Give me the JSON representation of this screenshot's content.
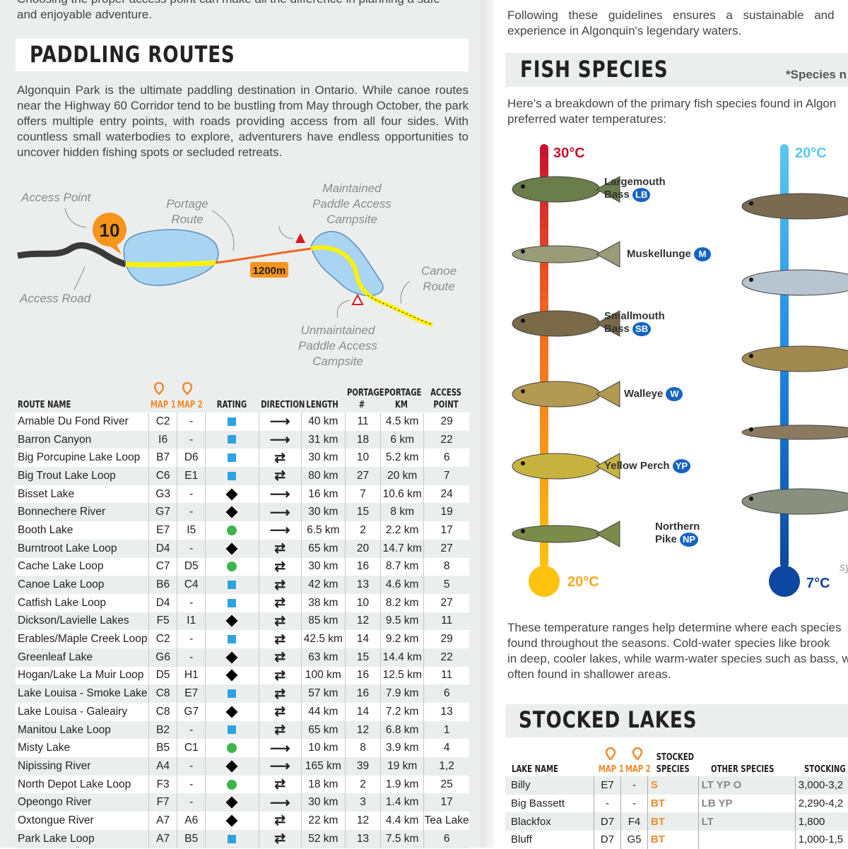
{
  "left": {
    "intro_lines": [
      "Choosing the proper access point can make all the difference in planning a safe",
      "and enjoyable adventure."
    ],
    "title": "PADDLING ROUTES",
    "paragraph": "Algonquin Park is the ultimate paddling destination in Ontario. While canoe routes near the Highway 60 Corridor tend to be bustling from May through October, the park offers multiple entry points, with roads providing access from all four sides. With countless small waterbodies to explore, adventurers have endless opportunities to uncover hidden fishing spots or secluded retreats.",
    "diagram": {
      "access_point": "Access Point",
      "access_number": "10",
      "portage_route": [
        "Portage",
        "Route"
      ],
      "maintained": [
        "Maintained",
        "Paddle Access",
        "Campsite"
      ],
      "portage_length": "1200m",
      "access_road": "Access Road",
      "canoe_route": [
        "Canoe",
        "Route"
      ],
      "unmaintained": [
        "Unmaintained",
        "Paddle Access",
        "Campsite"
      ]
    },
    "table": {
      "headers": {
        "route_name": "ROUTE NAME",
        "map1": "MAP 1",
        "map2": "MAP 2",
        "rating": "RATING",
        "direction": "DIRECTION",
        "length": "LENGTH",
        "portage_num": [
          "PORTAGE",
          "#"
        ],
        "portage_km": [
          "PORTAGE",
          "KM"
        ],
        "access_point": [
          "ACCESS",
          "POINT"
        ]
      },
      "rows": [
        [
          "Amable Du Fond River",
          "C2",
          "-",
          "square",
          "one-way",
          "40 km",
          "11",
          "4.5 km",
          "29"
        ],
        [
          "Barron Canyon",
          "I6",
          "-",
          "square",
          "one-way",
          "31 km",
          "18",
          "6 km",
          "22"
        ],
        [
          "Big Porcupine Lake Loop",
          "B7",
          "D6",
          "square",
          "loop",
          "30 km",
          "10",
          "5.2 km",
          "6"
        ],
        [
          "Big Trout Lake Loop",
          "C6",
          "E1",
          "square",
          "loop",
          "80 km",
          "27",
          "20 km",
          "7"
        ],
        [
          "Bisset Lake",
          "G3",
          "-",
          "diamond",
          "one-way",
          "16 km",
          "7",
          "10.6 km",
          "24"
        ],
        [
          "Bonnechere River",
          "G7",
          "-",
          "diamond",
          "one-way",
          "30 km",
          "15",
          "8 km",
          "19"
        ],
        [
          "Booth Lake",
          "E7",
          "I5",
          "circle",
          "one-way",
          "6.5 km",
          "2",
          "2.2 km",
          "17"
        ],
        [
          "Burntroot Lake Loop",
          "D4",
          "-",
          "diamond",
          "loop",
          "65 km",
          "20",
          "14.7 km",
          "27"
        ],
        [
          "Cache Lake Loop",
          "C7",
          "D5",
          "circle",
          "loop",
          "30 km",
          "16",
          "8.7 km",
          "8"
        ],
        [
          "Canoe Lake Loop",
          "B6",
          "C4",
          "square",
          "loop",
          "42 km",
          "13",
          "4.6 km",
          "5"
        ],
        [
          "Catfish Lake Loop",
          "D4",
          "-",
          "square",
          "loop",
          "38 km",
          "10",
          "8.2 km",
          "27"
        ],
        [
          "Dickson/Lavielle Lakes",
          "F5",
          "I1",
          "diamond",
          "loop",
          "85 km",
          "12",
          "9.5 km",
          "11"
        ],
        [
          "Erables/Maple Creek Loop",
          "C2",
          "-",
          "square",
          "loop",
          "42.5 km",
          "14",
          "9.2 km",
          "29"
        ],
        [
          "Greenleaf Lake",
          "G6",
          "-",
          "diamond",
          "loop",
          "63 km",
          "15",
          "14.4 km",
          "22"
        ],
        [
          "Hogan/Lake La Muir Loop",
          "D5",
          "H1",
          "diamond",
          "loop",
          "100 km",
          "16",
          "12.5 km",
          "11"
        ],
        [
          "Lake Louisa - Smoke Lake",
          "C8",
          "E7",
          "square",
          "loop",
          "57 km",
          "16",
          "7.9 km",
          "6"
        ],
        [
          "Lake Louisa - Galeairy",
          "C8",
          "G7",
          "diamond",
          "loop",
          "44 km",
          "14",
          "7.2 km",
          "13"
        ],
        [
          "Manitou Lake Loop",
          "B2",
          "-",
          "square",
          "loop",
          "65 km",
          "12",
          "6.8 km",
          "1"
        ],
        [
          "Misty Lake",
          "B5",
          "C1",
          "circle",
          "one-way",
          "10 km",
          "8",
          "3.9 km",
          "4"
        ],
        [
          "Nipissing River",
          "A4",
          "-",
          "diamond",
          "one-way",
          "165 km",
          "39",
          "19 km",
          "1,2"
        ],
        [
          "North Depot Lake Loop",
          "F3",
          "-",
          "circle",
          "loop",
          "18 km",
          "2",
          "1.9 km",
          "25"
        ],
        [
          "Opeongo River",
          "F7",
          "-",
          "diamond",
          "one-way",
          "30 km",
          "3",
          "1.4 km",
          "17"
        ],
        [
          "Oxtongue River",
          "A7",
          "A6",
          "diamond",
          "loop",
          "22 km",
          "12",
          "4.4 km",
          "Tea Lake"
        ],
        [
          "Park Lake Loop",
          "A7",
          "B5",
          "square",
          "loop",
          "52 km",
          "13",
          "7.5 km",
          "6"
        ]
      ]
    }
  },
  "right": {
    "intro_lines": [
      "Following these guidelines ensures a sustainable and",
      "experience in Algonquin's legendary waters."
    ],
    "title": "FISH SPECIES",
    "note": "*Species n",
    "paragraph_lines": [
      "Here's a breakdown of the primary fish species found in Algon",
      "preferred water temperatures:"
    ],
    "warm_top": "30°C",
    "warm_bottom": "20°C",
    "cold_top": "20°C",
    "cold_bottom": "7°C",
    "cut_text": "sy",
    "colors": {
      "warm_top": "#c8102e",
      "warm_bottom": "#ffc20e",
      "cold_top": "#5bc8f0",
      "cold_bottom": "#0d47a1",
      "badge": "#1565c0",
      "orange": "#f08a2c"
    },
    "fish": [
      {
        "name": [
          "Largemouth",
          "Bass"
        ],
        "badge": "LB"
      },
      {
        "name": [
          "Muskellunge"
        ],
        "badge": "M"
      },
      {
        "name": [
          "Smallmouth",
          "Bass"
        ],
        "badge": "SB"
      },
      {
        "name": [
          "Walleye"
        ],
        "badge": "W"
      },
      {
        "name": [
          "Yellow Perch"
        ],
        "badge": "YP"
      },
      {
        "name": [
          "Northern",
          "Pike"
        ],
        "badge": "NP"
      }
    ],
    "summary_lines": [
      "These temperature ranges help determine where each species",
      "found throughout the seasons. Cold-water species like brook",
      "in deep, cooler lakes, while warm-water species such as bass, w",
      "often found in shallower areas."
    ],
    "stocked": {
      "title": "STOCKED LAKES",
      "headers": {
        "lake_name": "LAKE NAME",
        "map1": "MAP 1",
        "map2": "MAP 2",
        "stocked_species": [
          "STOCKED",
          "SPECIES"
        ],
        "other_species": "OTHER SPECIES",
        "stocking": "STOCKING"
      },
      "rows": [
        [
          "Billy",
          "E7",
          "-",
          "S",
          "LT YP O",
          "3,000-3,2"
        ],
        [
          "Big Bassett",
          "-",
          "-",
          "BT",
          "LB YP",
          "2,290-4,2"
        ],
        [
          "Blackfox",
          "D7",
          "F4",
          "BT",
          "LT",
          "1,800"
        ],
        [
          "Bluff",
          "D7",
          "G5",
          "BT",
          "",
          "1,000-1,5"
        ]
      ]
    }
  }
}
